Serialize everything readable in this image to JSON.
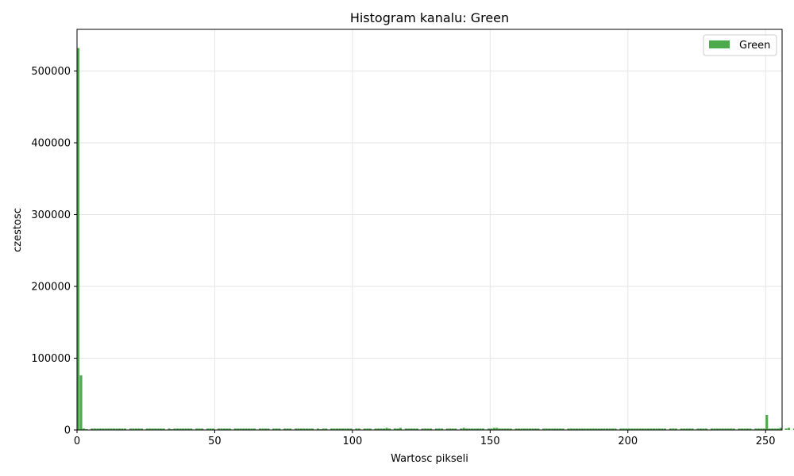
{
  "chart_data": {
    "type": "bar",
    "title": "Histogram kanalu: Green",
    "xlabel": "Wartosc pikseli",
    "ylabel": "czestosc",
    "xlim": [
      0,
      256
    ],
    "ylim": [
      0,
      558000
    ],
    "xticks": [
      0,
      50,
      100,
      150,
      200,
      250
    ],
    "yticks": [
      0,
      100000,
      200000,
      300000,
      400000,
      500000
    ],
    "grid": true,
    "legend": {
      "position": "top-right",
      "entries": [
        {
          "name": "Green",
          "color": "#4caa4c"
        }
      ]
    },
    "series": [
      {
        "name": "Green",
        "color": "#4caa4c",
        "bins_start": 0,
        "bin_width": 1,
        "values": [
          532000,
          76000,
          2000,
          1000,
          0,
          2000,
          2000,
          2000,
          2000,
          2000,
          2000,
          2000,
          2000,
          2000,
          2000,
          2000,
          2000,
          2000,
          0,
          2000,
          2000,
          2000,
          2000,
          2000,
          0,
          2000,
          2000,
          2000,
          2000,
          2000,
          2000,
          2000,
          0,
          2000,
          1000,
          2000,
          2000,
          2000,
          2000,
          2000,
          2000,
          2000,
          0,
          2000,
          2000,
          2000,
          0,
          2000,
          2000,
          2000,
          0,
          2000,
          2000,
          2000,
          2000,
          2000,
          0,
          2000,
          2000,
          2000,
          2000,
          2000,
          2000,
          2000,
          2000,
          0,
          2000,
          2000,
          2000,
          2000,
          0,
          2000,
          2000,
          2000,
          0,
          2000,
          2000,
          2000,
          0,
          2000,
          2000,
          2000,
          2000,
          2000,
          2000,
          2000,
          0,
          2000,
          1000,
          2000,
          2000,
          0,
          2000,
          2000,
          2000,
          2000,
          2000,
          2000,
          2000,
          2000,
          0,
          2000,
          2000,
          0,
          2000,
          2000,
          2000,
          0,
          2000,
          2000,
          2000,
          2000,
          3000,
          2000,
          0,
          2000,
          2000,
          3000,
          0,
          2000,
          2000,
          2000,
          2000,
          2000,
          0,
          2000,
          2000,
          2000,
          2000,
          0,
          2000,
          2000,
          2000,
          0,
          2000,
          2000,
          2000,
          2000,
          0,
          2000,
          3000,
          2000,
          2000,
          2000,
          2000,
          2000,
          2000,
          2000,
          0,
          2000,
          2000,
          3000,
          3000,
          2000,
          2000,
          2000,
          2000,
          2000,
          0,
          2000,
          2000,
          2000,
          2000,
          2000,
          2000,
          2000,
          2000,
          2000,
          0,
          2000,
          2000,
          2000,
          2000,
          2000,
          2000,
          2000,
          2000,
          0,
          2000,
          2000,
          2000,
          2000,
          2000,
          2000,
          2000,
          2000,
          2000,
          2000,
          2000,
          2000,
          2000,
          2000,
          2000,
          2000,
          2000,
          2000,
          0,
          2000,
          2000,
          2000,
          2000,
          2000,
          2000,
          2000,
          2000,
          2000,
          2000,
          2000,
          2000,
          2000,
          2000,
          2000,
          2000,
          2000,
          0,
          2000,
          2000,
          2000,
          0,
          2000,
          2000,
          2000,
          2000,
          2000,
          0,
          2000,
          2000,
          2000,
          2000,
          0,
          2000,
          2000,
          2000,
          2000,
          2000,
          2000,
          2000,
          2000,
          2000,
          0,
          2000,
          2000,
          2000,
          2000,
          2000,
          0,
          2000,
          2000,
          2000,
          2000,
          21000,
          2000,
          2000,
          2000,
          2000,
          3000,
          0,
          2000,
          3000,
          0,
          2000,
          2000,
          0,
          2000,
          2000,
          3000,
          14000
        ]
      }
    ]
  }
}
